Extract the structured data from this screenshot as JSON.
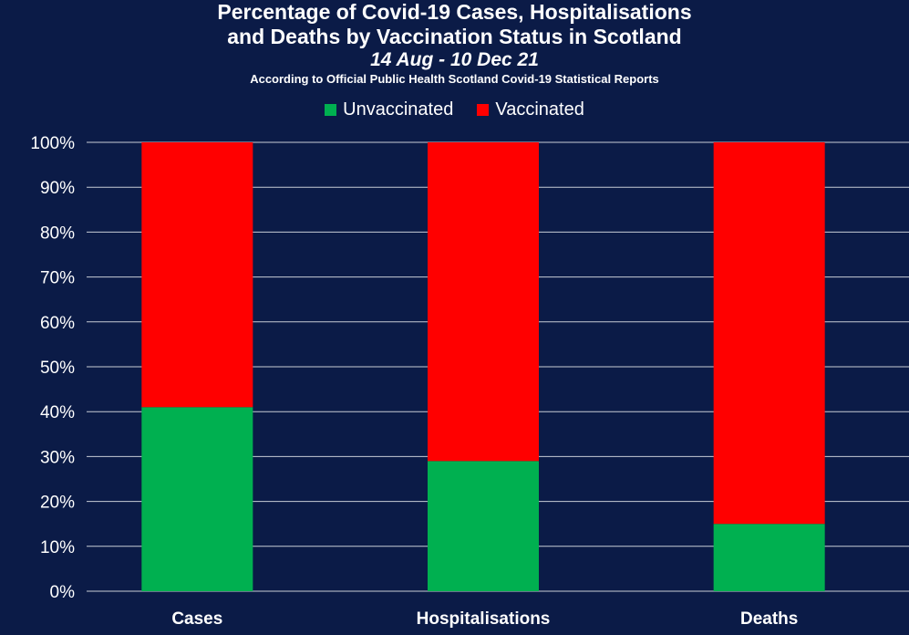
{
  "title_line1": "Percentage of Covid-19 Cases, Hospitalisations",
  "title_line2": "and Deaths by Vaccination Status in Scotland",
  "subtitle": "14 Aug - 10 Dec 21",
  "source": "According to Official Public Health Scotland Covid-19 Statistical Reports",
  "colors": {
    "background": "#0b1b47",
    "unvaccinated": "#00b050",
    "vaccinated": "#ff0000",
    "grid": "#c8ccd6"
  },
  "chart_data": {
    "type": "bar",
    "stacked": true,
    "categories": [
      "Cases",
      "Hospitalisations",
      "Deaths"
    ],
    "series": [
      {
        "name": "Unvaccinated",
        "values": [
          41,
          29,
          15
        ]
      },
      {
        "name": "Vaccinated",
        "values": [
          59,
          71,
          85
        ]
      }
    ],
    "ylim": [
      0,
      100
    ],
    "yticks": [
      "0%",
      "10%",
      "20%",
      "30%",
      "40%",
      "50%",
      "60%",
      "70%",
      "80%",
      "90%",
      "100%"
    ],
    "grid": true,
    "legend_position": "top-center"
  }
}
